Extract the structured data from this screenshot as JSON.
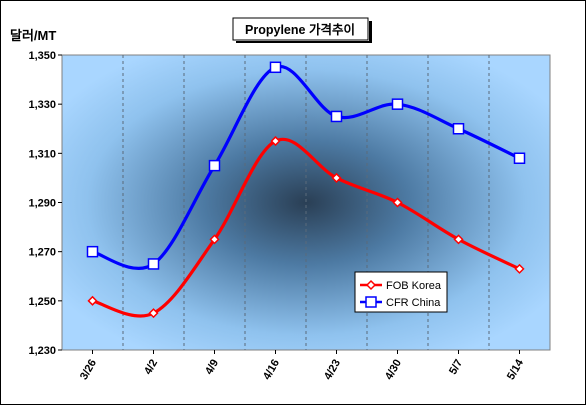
{
  "chart_data": {
    "type": "line",
    "title": "Propylene 가격추이",
    "ylabel": "달러/MT",
    "xlabel": "",
    "categories": [
      "3/26",
      "4/2",
      "4/9",
      "4/16",
      "4/23",
      "4/30",
      "5/7",
      "5/14"
    ],
    "ylim": [
      1230,
      1350
    ],
    "yticks": [
      "1,230",
      "1,250",
      "1,270",
      "1,290",
      "1,310",
      "1,330",
      "1,350"
    ],
    "grid": "vertical dashed",
    "legend_position": "bottom-right",
    "series": [
      {
        "name": "FOB Korea",
        "color": "#ff0000",
        "marker": "diamond",
        "values": [
          1250,
          1245,
          1275,
          1315,
          1300,
          1290,
          1275,
          1263
        ]
      },
      {
        "name": "CFR China",
        "color": "#0000ff",
        "marker": "square",
        "values": [
          1270,
          1265,
          1305,
          1345,
          1325,
          1330,
          1320,
          1308
        ]
      }
    ]
  }
}
